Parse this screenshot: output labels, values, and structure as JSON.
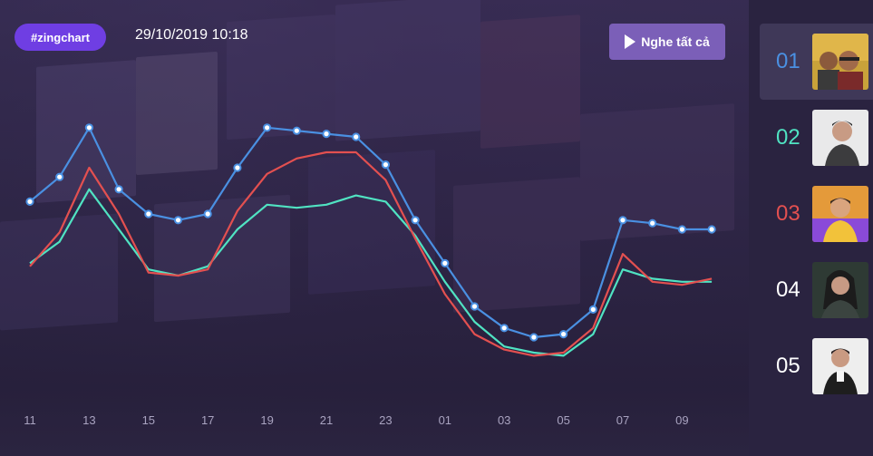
{
  "header": {
    "hashtag": "#zingchart",
    "datetime": "29/10/2019 10:18",
    "play_all_label": "Nghe tất cả"
  },
  "colors": {
    "line1": "#4a90e2",
    "line2": "#50e3c2",
    "line3": "#e35050",
    "rank1": "#4a90e2",
    "rank2": "#50e3c2",
    "rank3": "#e35050",
    "badge": "#6f3ee3",
    "button": "#7b5fb8"
  },
  "chart_data": {
    "type": "line",
    "x": [
      "11",
      "12",
      "13",
      "14",
      "15",
      "16",
      "17",
      "18",
      "19",
      "20",
      "21",
      "22",
      "23",
      "00",
      "01",
      "02",
      "03",
      "04",
      "05",
      "06",
      "07",
      "08",
      "09",
      "10"
    ],
    "xtick_labels": [
      "11",
      "13",
      "15",
      "17",
      "19",
      "21",
      "23",
      "01",
      "03",
      "05",
      "07",
      "09"
    ],
    "series": [
      {
        "values": [
          64,
          72,
          88,
          68,
          60,
          58,
          60,
          75,
          88,
          87,
          86,
          85,
          76,
          58,
          44,
          30,
          23,
          20,
          21,
          29,
          58,
          57,
          55,
          55
        ]
      },
      {
        "values": [
          44,
          51,
          68,
          55,
          42,
          40,
          43,
          55,
          63,
          62,
          63,
          66,
          64,
          53,
          38,
          25,
          17,
          15,
          14,
          21,
          42,
          39,
          38,
          38
        ]
      },
      {
        "values": [
          43,
          54,
          75,
          60,
          41,
          40,
          42,
          61,
          73,
          78,
          80,
          80,
          71,
          52,
          34,
          21,
          16,
          14,
          15,
          23,
          47,
          38,
          37,
          39
        ]
      }
    ],
    "markers_on_series": 0,
    "grid": false
  },
  "ranking": [
    {
      "rank": "01",
      "thumb": "song-1-thumb"
    },
    {
      "rank": "02",
      "thumb": "song-2-thumb"
    },
    {
      "rank": "03",
      "thumb": "song-3-thumb"
    },
    {
      "rank": "04",
      "thumb": "song-4-thumb"
    },
    {
      "rank": "05",
      "thumb": "song-5-thumb"
    }
  ]
}
